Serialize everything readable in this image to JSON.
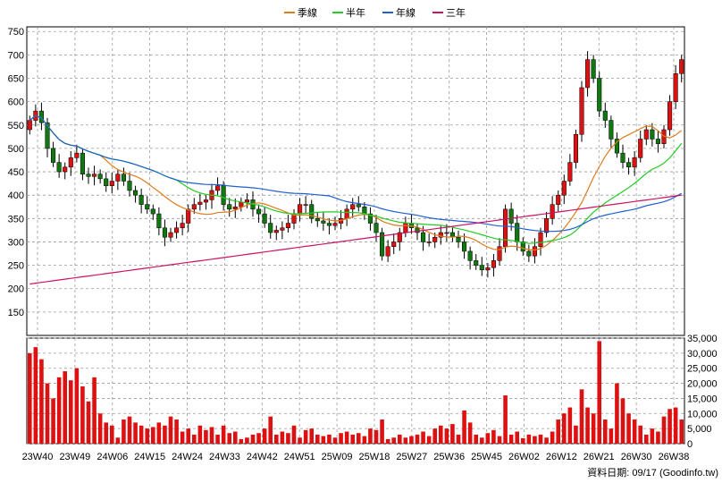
{
  "legend": [
    {
      "name": "季線",
      "color": "#e07b1a"
    },
    {
      "name": "半年",
      "color": "#22cc22"
    },
    {
      "name": "年線",
      "color": "#1f5fcf"
    },
    {
      "name": "三年",
      "color": "#cc1166"
    }
  ],
  "footer": {
    "text": "資料日期: 09/17 (Goodinfo.tw)"
  },
  "colors": {
    "up": "#dd1111",
    "down": "#117711",
    "volume": "#dd1111",
    "grid": "#999999"
  },
  "chart_data": [
    {
      "type": "candlestick",
      "y_ticks": [
        "150",
        "200",
        "250",
        "300",
        "350",
        "400",
        "450",
        "500",
        "550",
        "600",
        "650",
        "700",
        "750"
      ],
      "ylim": [
        100,
        760
      ],
      "x_ticks": [
        "23W40",
        "23W49",
        "24W06",
        "24W15",
        "24W24",
        "24W33",
        "24W42",
        "24W51",
        "25W09",
        "25W18",
        "25W27",
        "25W36",
        "25W45",
        "26W02",
        "26W12",
        "26W21",
        "26W30",
        "26W38"
      ],
      "grid": true,
      "close": [
        560,
        580,
        555,
        500,
        470,
        450,
        460,
        480,
        490,
        445,
        440,
        445,
        435,
        420,
        430,
        445,
        430,
        410,
        400,
        380,
        370,
        360,
        330,
        310,
        320,
        330,
        340,
        370,
        380,
        385,
        390,
        410,
        420,
        380,
        370,
        375,
        385,
        390,
        370,
        360,
        340,
        320,
        325,
        330,
        340,
        360,
        380,
        380,
        350,
        345,
        340,
        335,
        340,
        350,
        370,
        380,
        375,
        360,
        340,
        320,
        270,
        290,
        300,
        320,
        340,
        330,
        320,
        300,
        300,
        310,
        320,
        320,
        310,
        300,
        280,
        260,
        250,
        240,
        245,
        260,
        290,
        370,
        340,
        300,
        280,
        270,
        290,
        320,
        350,
        380,
        400,
        430,
        470,
        530,
        630,
        690,
        650,
        580,
        560,
        520,
        490,
        470,
        460,
        480,
        520,
        540,
        520,
        510,
        540,
        600,
        660,
        690
      ]
    },
    {
      "type": "bar",
      "y_ticks": [
        "0",
        "5,000",
        "10,000",
        "15,000",
        "20,000",
        "25,000",
        "30,000",
        "35,000"
      ],
      "ylim": [
        0,
        35000
      ],
      "values": [
        30000,
        32000,
        28000,
        20000,
        15000,
        22000,
        24000,
        21000,
        25000,
        19000,
        14000,
        22000,
        10000,
        7000,
        6000,
        2000,
        8000,
        9000,
        7000,
        6000,
        5000,
        5500,
        7000,
        6000,
        9000,
        8000,
        4000,
        5000,
        3000,
        6000,
        4500,
        5500,
        3000,
        6000,
        3500,
        4000,
        1500,
        2000,
        3000,
        3500,
        5000,
        9000,
        3000,
        4000,
        3500,
        6000,
        2000,
        4500,
        5000,
        3000,
        2500,
        3000,
        2000,
        3500,
        4000,
        3000,
        3500,
        2500,
        5000,
        4500,
        8000,
        1500,
        2000,
        3000,
        2000,
        2500,
        3000,
        4000,
        2500,
        5000,
        6000,
        5000,
        6500,
        3000,
        11000,
        7000,
        3000,
        2000,
        3500,
        4500,
        2500,
        16000,
        3000,
        4000,
        1800,
        3000,
        2500,
        3000,
        2000,
        4000,
        8000,
        10000,
        12000,
        6000,
        18000,
        12000,
        10000,
        34000,
        8000,
        5000,
        20000,
        15000,
        10000,
        8000,
        6000,
        3000,
        5000,
        4000,
        9000,
        11500,
        12000,
        8000
      ]
    }
  ]
}
